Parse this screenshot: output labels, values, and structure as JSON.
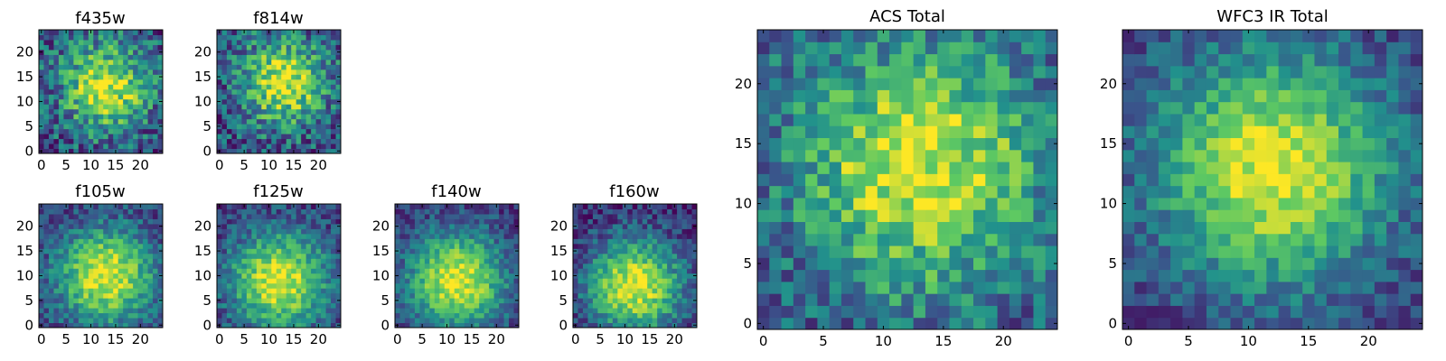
{
  "figure": {
    "colormap": "viridis",
    "colors": [
      "#440154",
      "#3b528b",
      "#21918c",
      "#5ec962",
      "#fde725"
    ],
    "axis_color": "#000000"
  },
  "chart_data": [
    {
      "type": "heatmap",
      "title": "f435w",
      "size": 25,
      "xlim": [
        0,
        24
      ],
      "ylim": [
        0,
        24
      ],
      "xticks": [
        0,
        5,
        10,
        15,
        20
      ],
      "yticks": [
        0,
        5,
        10,
        15,
        20
      ],
      "peak": [
        13,
        13
      ],
      "spread": 6,
      "noise": 0.55,
      "floor": 0.45,
      "seed": 11
    },
    {
      "type": "heatmap",
      "title": "f814w",
      "size": 25,
      "xlim": [
        0,
        24
      ],
      "ylim": [
        0,
        24
      ],
      "xticks": [
        0,
        5,
        10,
        15,
        20
      ],
      "yticks": [
        0,
        5,
        10,
        15,
        20
      ],
      "peak": [
        13,
        14
      ],
      "spread": 6,
      "noise": 0.55,
      "floor": 0.45,
      "seed": 23
    },
    {
      "type": "heatmap",
      "title": "f105w",
      "size": 25,
      "xlim": [
        0,
        24
      ],
      "ylim": [
        0,
        24
      ],
      "xticks": [
        0,
        5,
        10,
        15,
        20
      ],
      "yticks": [
        0,
        5,
        10,
        15,
        20
      ],
      "peak": [
        13,
        10
      ],
      "spread": 7,
      "noise": 0.35,
      "floor": 0.3,
      "seed": 37
    },
    {
      "type": "heatmap",
      "title": "f125w",
      "size": 25,
      "xlim": [
        0,
        24
      ],
      "ylim": [
        0,
        24
      ],
      "xticks": [
        0,
        5,
        10,
        15,
        20
      ],
      "yticks": [
        0,
        5,
        10,
        15,
        20
      ],
      "peak": [
        12,
        9
      ],
      "spread": 7,
      "noise": 0.35,
      "floor": 0.3,
      "seed": 41
    },
    {
      "type": "heatmap",
      "title": "f140w",
      "size": 25,
      "xlim": [
        0,
        24
      ],
      "ylim": [
        0,
        24
      ],
      "xticks": [
        0,
        5,
        10,
        15,
        20
      ],
      "yticks": [
        0,
        5,
        10,
        15,
        20
      ],
      "peak": [
        12,
        9
      ],
      "spread": 7,
      "noise": 0.32,
      "floor": 0.28,
      "seed": 53
    },
    {
      "type": "heatmap",
      "title": "f160w",
      "size": 25,
      "xlim": [
        0,
        24
      ],
      "ylim": [
        0,
        24
      ],
      "xticks": [
        0,
        5,
        10,
        15,
        20
      ],
      "yticks": [
        0,
        5,
        10,
        15,
        20
      ],
      "peak": [
        12,
        8
      ],
      "spread": 7,
      "noise": 0.35,
      "floor": 0.2,
      "seed": 67
    },
    {
      "type": "heatmap",
      "title": "ACS Total",
      "size": 25,
      "xlim": [
        0,
        24
      ],
      "ylim": [
        0,
        24
      ],
      "xticks": [
        0,
        5,
        10,
        15,
        20
      ],
      "yticks": [
        0,
        5,
        10,
        15,
        20
      ],
      "peak": [
        13,
        13
      ],
      "spread": 7,
      "noise": 0.45,
      "floor": 0.5,
      "seed": 79
    },
    {
      "type": "heatmap",
      "title": "WFC3 IR Total",
      "size": 25,
      "xlim": [
        0,
        24
      ],
      "ylim": [
        0,
        24
      ],
      "xticks": [
        0,
        5,
        10,
        15,
        20
      ],
      "yticks": [
        0,
        5,
        10,
        15,
        20
      ],
      "peak": [
        12,
        13
      ],
      "spread": 7,
      "noise": 0.3,
      "floor": 0.3,
      "seed": 97
    }
  ]
}
